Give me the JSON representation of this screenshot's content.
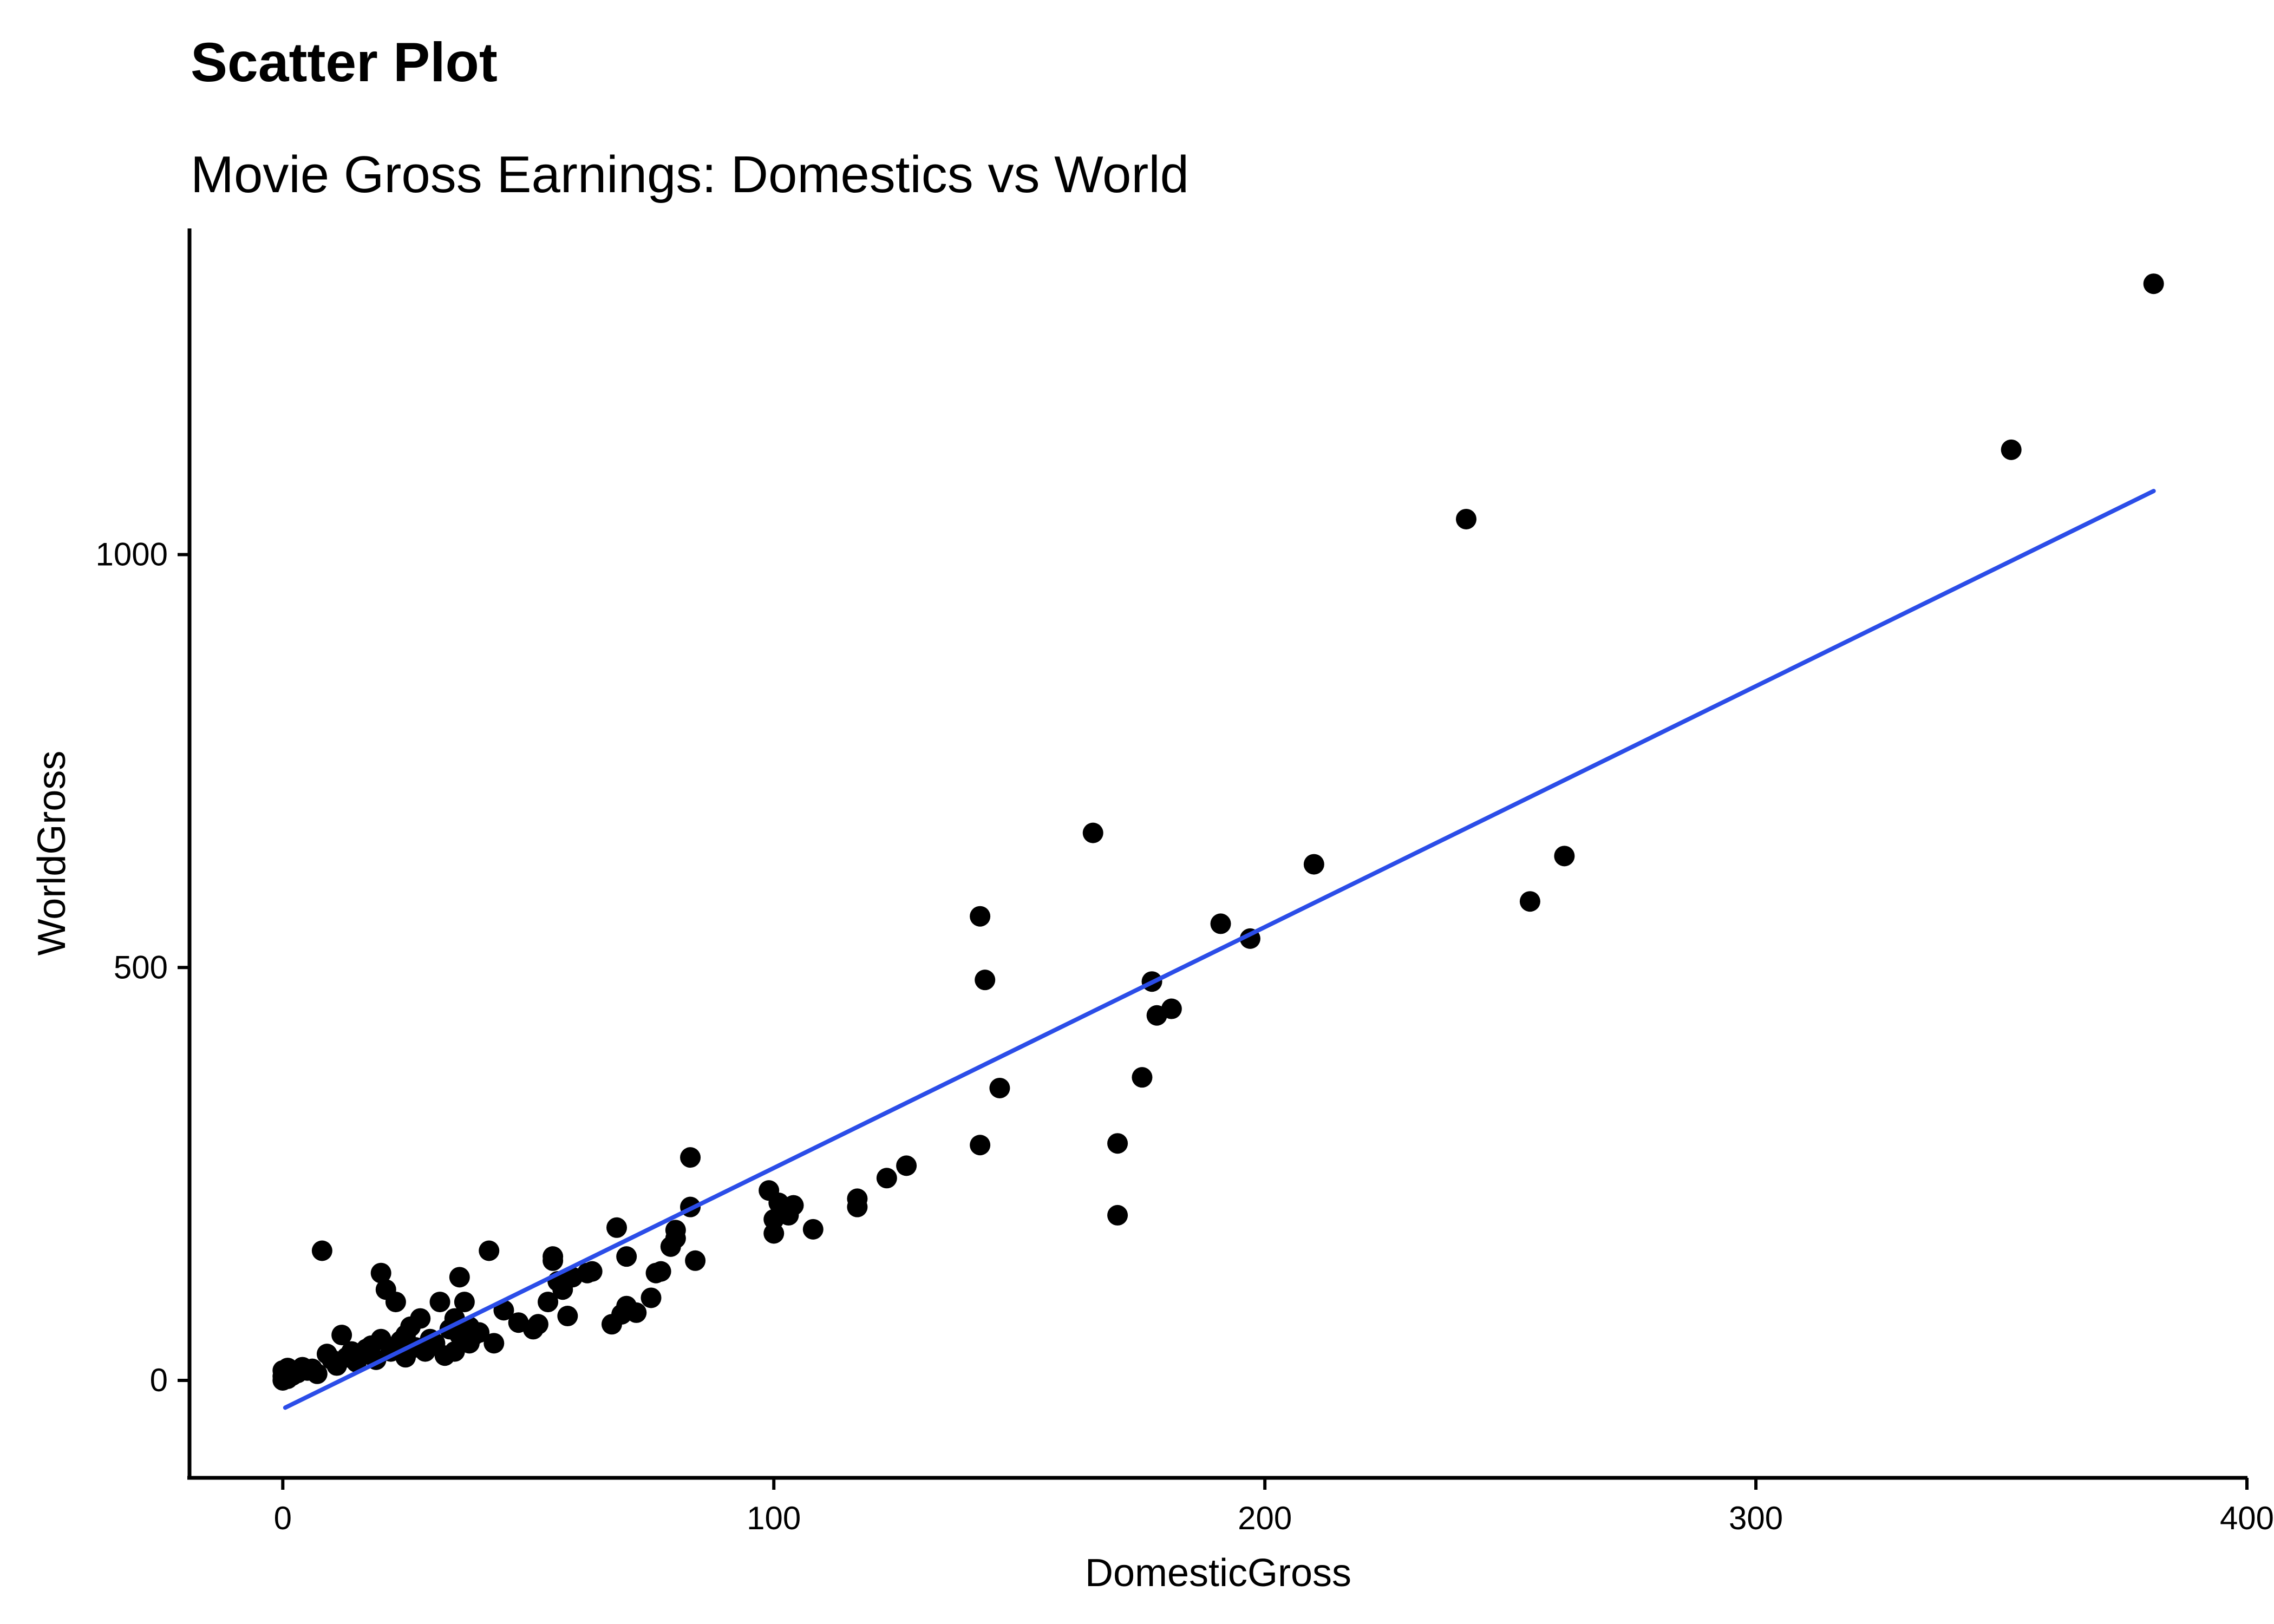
{
  "chart_data": {
    "type": "scatter",
    "title": "Scatter Plot",
    "subtitle": "Movie Gross Earnings: Domestics vs World",
    "xlabel": "DomesticGross",
    "ylabel": "WorldGross",
    "xlim": [
      -19,
      400
    ],
    "ylim": [
      -118,
      1395
    ],
    "xticks": [
      0,
      100,
      200,
      300,
      400
    ],
    "yticks": [
      0,
      500,
      1000
    ],
    "grid": false,
    "legend": "none",
    "point_color": "#000000",
    "trend_color": "#2b4de8",
    "trend_line": {
      "x": [
        0.5,
        381
      ],
      "y": [
        -33,
        1077
      ]
    },
    "x": [
      0,
      0,
      0,
      1,
      1,
      1,
      2,
      3,
      4,
      5,
      6,
      7,
      8,
      9,
      10,
      11,
      12,
      13,
      14,
      15,
      16,
      17,
      18,
      19,
      20,
      20,
      21,
      22,
      23,
      24,
      25,
      25,
      26,
      27,
      28,
      29,
      30,
      31,
      32,
      33,
      34,
      35,
      35,
      36,
      36,
      37,
      38,
      38,
      39,
      40,
      42,
      43,
      45,
      48,
      51,
      52,
      54,
      55,
      55,
      56,
      57,
      58,
      59,
      62,
      63,
      67,
      68,
      69,
      70,
      70,
      72,
      75,
      76,
      77,
      79,
      80,
      80,
      83,
      83,
      84,
      99,
      100,
      100,
      101,
      103,
      104,
      108,
      117,
      117,
      123,
      127,
      142,
      142,
      143,
      146,
      165,
      170,
      170,
      175,
      177,
      178,
      181,
      191,
      197,
      210,
      241,
      254,
      261,
      352,
      381
    ],
    "y": [
      0,
      5,
      12,
      2,
      8,
      15,
      6,
      9,
      16,
      12,
      14,
      8,
      157,
      32,
      25,
      18,
      55,
      28,
      35,
      22,
      30,
      38,
      42,
      25,
      130,
      50,
      110,
      35,
      95,
      48,
      28,
      55,
      65,
      40,
      75,
      35,
      50,
      45,
      95,
      30,
      62,
      75,
      35,
      125,
      55,
      95,
      65,
      45,
      55,
      58,
      157,
      45,
      85,
      70,
      62,
      68,
      95,
      145,
      150,
      120,
      110,
      78,
      125,
      130,
      132,
      68,
      185,
      80,
      90,
      150,
      82,
      100,
      130,
      132,
      162,
      182,
      172,
      210,
      270,
      145,
      230,
      178,
      195,
      215,
      200,
      212,
      183,
      220,
      210,
      245,
      260,
      285,
      562,
      485,
      354,
      663,
      200,
      287,
      367,
      483,
      442,
      450,
      553,
      535,
      625,
      1043,
      580,
      635,
      1127,
      1328
    ]
  }
}
